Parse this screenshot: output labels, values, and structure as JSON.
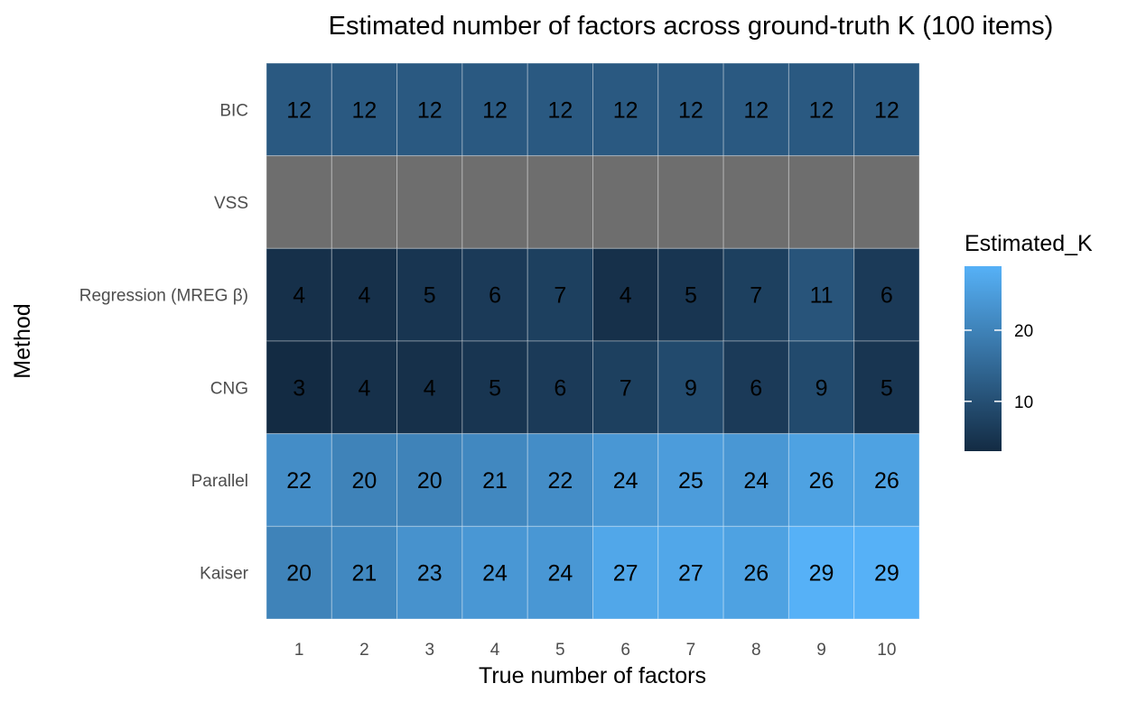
{
  "chart_data": {
    "type": "heatmap",
    "title": "Estimated number of factors across ground-truth K (100 items)",
    "xlabel": "True number of factors",
    "ylabel": "Method",
    "x_categories": [
      "1",
      "2",
      "3",
      "4",
      "5",
      "6",
      "7",
      "8",
      "9",
      "10"
    ],
    "y_categories": [
      "BIC",
      "VSS",
      "Regression (MREG β)",
      "CNG",
      "Parallel",
      "Kaiser"
    ],
    "values": [
      [
        12,
        12,
        12,
        12,
        12,
        12,
        12,
        12,
        12,
        12
      ],
      [
        null,
        null,
        null,
        null,
        null,
        null,
        null,
        null,
        null,
        null
      ],
      [
        4,
        4,
        5,
        6,
        7,
        4,
        5,
        7,
        11,
        6
      ],
      [
        3,
        4,
        4,
        5,
        6,
        7,
        9,
        6,
        9,
        5
      ],
      [
        22,
        20,
        20,
        21,
        22,
        24,
        25,
        24,
        26,
        26
      ],
      [
        20,
        21,
        23,
        24,
        24,
        27,
        27,
        26,
        29,
        29
      ]
    ],
    "legend": {
      "title": "Estimated_K",
      "ticks": [
        10,
        20
      ],
      "range": [
        3,
        29
      ],
      "position": "right"
    },
    "colors": {
      "low": "#132b43",
      "high": "#56b1f7",
      "na": "#6e6e6e",
      "panel_background": "#ebebeb",
      "grid": "#ffffff"
    }
  }
}
